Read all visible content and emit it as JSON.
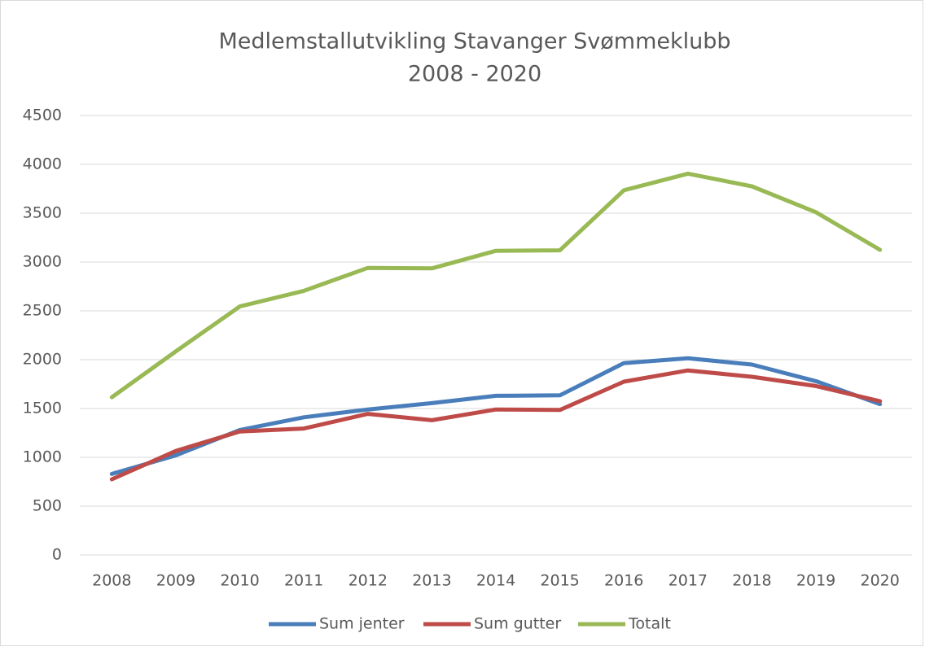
{
  "chart_data": {
    "type": "line",
    "title": [
      "Medlemstallutvikling Stavanger Svømmeklubb",
      "2008 - 2020"
    ],
    "categories": [
      "2008",
      "2009",
      "2010",
      "2011",
      "2012",
      "2013",
      "2014",
      "2015",
      "2016",
      "2017",
      "2018",
      "2019",
      "2020"
    ],
    "series": [
      {
        "name": "Sum jenter",
        "color": "#4a7ebb",
        "values": [
          830,
          1020,
          1280,
          1410,
          1490,
          1555,
          1630,
          1635,
          1965,
          2015,
          1950,
          1780,
          1545
        ]
      },
      {
        "name": "Sum gutter",
        "color": "#be4b48",
        "values": [
          775,
          1065,
          1265,
          1295,
          1445,
          1380,
          1490,
          1485,
          1775,
          1890,
          1825,
          1730,
          1575
        ]
      },
      {
        "name": "Totalt",
        "color": "#98b954",
        "values": [
          1615,
          2085,
          2545,
          2705,
          2940,
          2935,
          3115,
          3120,
          3735,
          3905,
          3775,
          3510,
          3125
        ]
      }
    ],
    "ylim": [
      0,
      4500
    ],
    "yticks": [
      0,
      500,
      1000,
      1500,
      2000,
      2500,
      3000,
      3500,
      4000,
      4500
    ],
    "grid": true,
    "legend": "bottom"
  }
}
